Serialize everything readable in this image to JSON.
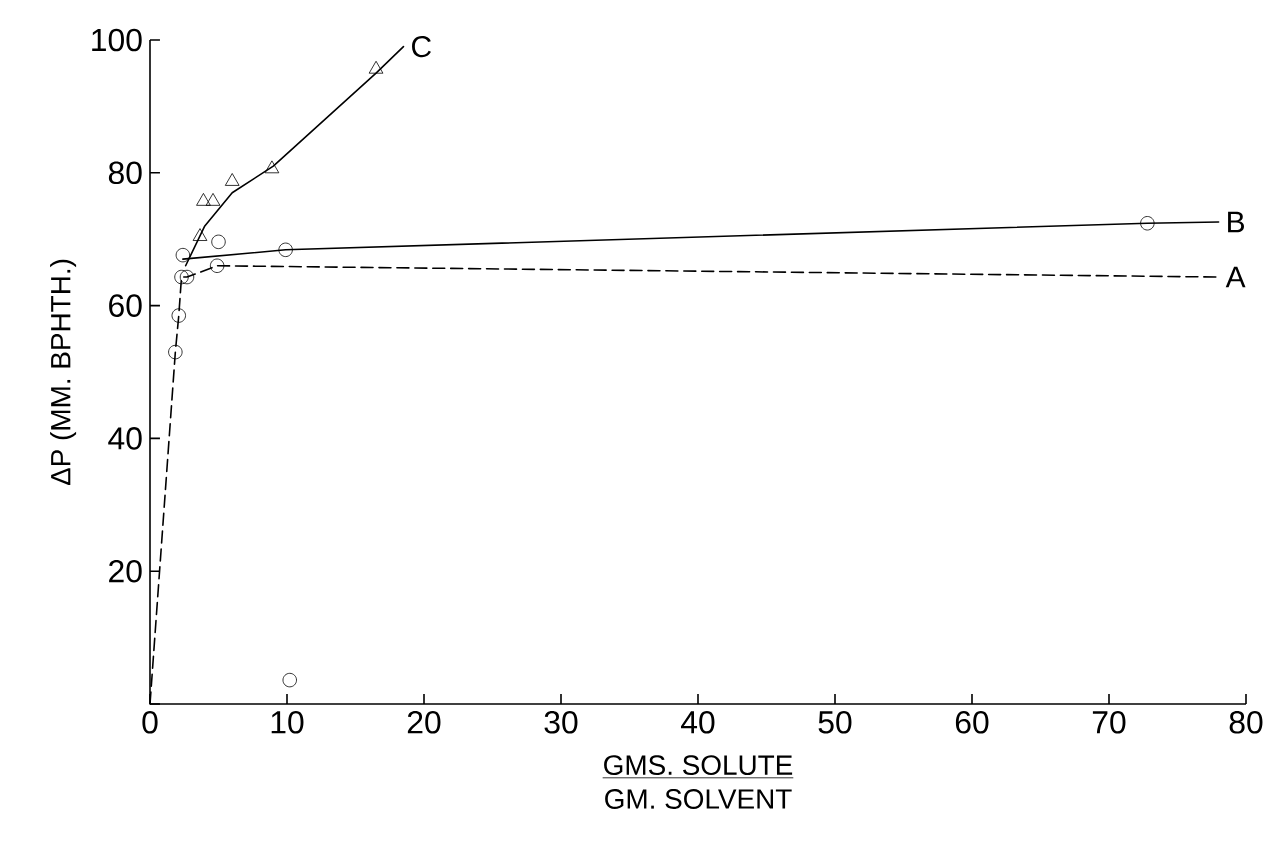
{
  "chart_data": {
    "type": "line",
    "xlabel": "GMS. SOLUTE",
    "ylabel": "ΔP (MM. BPHTH.)",
    "annotations": [
      "GM. SOLVENT"
    ],
    "xlim": [
      0,
      80
    ],
    "ylim": [
      0,
      100
    ],
    "xticks": [
      {
        "value": 0,
        "label": "0"
      },
      10,
      20,
      30,
      40,
      50,
      60,
      70,
      80
    ],
    "yticks": [
      {
        "value": 0,
        "label": null
      },
      20,
      40,
      60,
      80,
      100
    ],
    "series": [
      {
        "name": "A",
        "line_style": "dashed",
        "marker": "none",
        "color": "#000000",
        "x": [
          0,
          1.85,
          2.1,
          2.3,
          2.7,
          4.9,
          78
        ],
        "values": [
          0,
          53,
          58.5,
          64.3,
          64.3,
          66,
          64.3
        ]
      },
      {
        "type": "scatter",
        "marker": "circle",
        "color": "#000000",
        "x": [
          1.85,
          2.1,
          2.3,
          2.7,
          4.9
        ],
        "values": [
          53,
          58.5,
          64.3,
          64.3,
          66
        ]
      },
      {
        "name": "B",
        "line_style": "solid",
        "marker": "none",
        "color": "#000000",
        "x": [
          2.4,
          9.9,
          72.8,
          78
        ],
        "values": [
          67,
          68.4,
          72.4,
          72.6
        ]
      },
      {
        "type": "scatter",
        "marker": "circle",
        "color": "#000000",
        "x": [
          2.4,
          5.0,
          9.9,
          72.8
        ],
        "values": [
          67.6,
          69.6,
          68.4,
          72.4
        ]
      },
      {
        "name": "C",
        "line_style": "solid",
        "marker": "none",
        "color": "#000000",
        "x": [
          2.6,
          4,
          6,
          9,
          16.5,
          18.5
        ],
        "values": [
          66,
          72,
          77,
          81,
          95,
          99
        ]
      },
      {
        "type": "scatter",
        "marker": "triangle",
        "color": "#000000",
        "x": [
          3.65,
          3.9,
          4.6,
          6.0,
          8.9,
          16.5
        ],
        "values": [
          70.4,
          75.7,
          75.7,
          78.7,
          80.6,
          95.6
        ]
      },
      {
        "type": "scatter",
        "marker": "circle",
        "color": "#000000",
        "x": [
          10.2
        ],
        "values": [
          3.6
        ]
      }
    ]
  }
}
